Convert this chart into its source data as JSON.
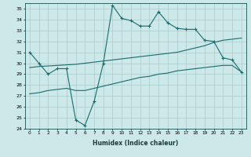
{
  "xlabel": "Humidex (Indice chaleur)",
  "background_color": "#cce8e8",
  "grid_color": "#aacccc",
  "line_color": "#1a6b6b",
  "xlim": [
    -0.5,
    23.5
  ],
  "ylim": [
    24,
    35.5
  ],
  "xticks": [
    0,
    1,
    2,
    3,
    4,
    5,
    6,
    7,
    8,
    9,
    10,
    11,
    12,
    13,
    14,
    15,
    16,
    17,
    18,
    19,
    20,
    21,
    22,
    23
  ],
  "yticks": [
    24,
    25,
    26,
    27,
    28,
    29,
    30,
    31,
    32,
    33,
    34,
    35
  ],
  "line1_x": [
    0,
    1,
    2,
    3,
    4,
    5,
    6,
    7,
    8,
    9,
    10,
    11,
    12,
    13,
    14,
    15,
    16,
    17,
    18,
    19,
    20,
    21,
    22,
    23
  ],
  "line1_y": [
    31.0,
    30.0,
    29.0,
    29.5,
    29.5,
    24.8,
    24.3,
    26.5,
    30.0,
    35.3,
    34.1,
    33.9,
    33.4,
    33.4,
    34.7,
    33.7,
    33.2,
    33.1,
    33.1,
    32.1,
    32.0,
    30.5,
    30.3,
    29.2
  ],
  "line2_x": [
    0,
    1,
    2,
    3,
    4,
    5,
    6,
    7,
    8,
    9,
    10,
    11,
    12,
    13,
    14,
    15,
    16,
    17,
    18,
    19,
    20,
    21,
    22,
    23
  ],
  "line2_y": [
    29.6,
    29.7,
    29.75,
    29.8,
    29.85,
    29.9,
    30.0,
    30.1,
    30.2,
    30.3,
    30.4,
    30.5,
    30.6,
    30.7,
    30.8,
    30.9,
    31.0,
    31.2,
    31.4,
    31.6,
    31.9,
    32.1,
    32.2,
    32.3
  ],
  "line3_x": [
    0,
    1,
    2,
    3,
    4,
    5,
    6,
    7,
    8,
    9,
    10,
    11,
    12,
    13,
    14,
    15,
    16,
    17,
    18,
    19,
    20,
    21,
    22,
    23
  ],
  "line3_y": [
    27.2,
    27.3,
    27.5,
    27.6,
    27.7,
    27.5,
    27.5,
    27.7,
    27.9,
    28.1,
    28.3,
    28.5,
    28.7,
    28.8,
    29.0,
    29.1,
    29.3,
    29.4,
    29.5,
    29.6,
    29.7,
    29.8,
    29.8,
    29.2
  ]
}
